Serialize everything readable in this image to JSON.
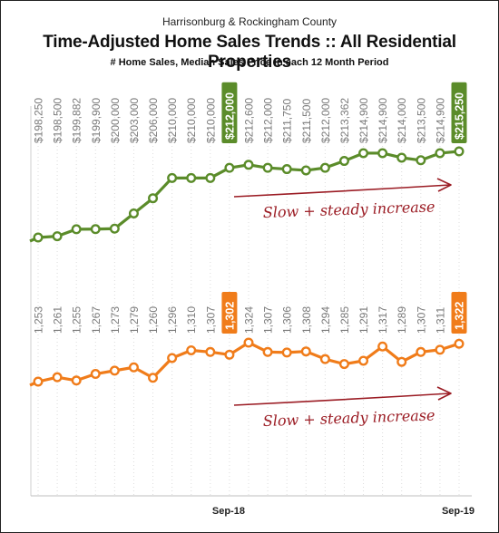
{
  "header": {
    "supertitle": "Harrisonburg & Rockingham County",
    "title": "Time-Adjusted Home Sales Trends  ::  All Residential Properties",
    "subtitle": "# Home Sales, Median Sales Price in each 12 Month Period"
  },
  "colors": {
    "price": "#5b8c2a",
    "sales": "#f07c1a",
    "annotation": "#9b1c24",
    "grid": "#dcdcdc"
  },
  "chart_data": [
    {
      "type": "line",
      "name": "Median Sales Price",
      "x_ticks": [
        "Sep-18",
        "Sep-19"
      ],
      "values": [
        198250,
        198500,
        199882,
        199900,
        200000,
        203000,
        206000,
        210000,
        210000,
        210000,
        212000,
        212600,
        212000,
        211750,
        211500,
        212000,
        213362,
        214900,
        214900,
        214000,
        213500,
        214900,
        215250
      ],
      "labels": [
        "$198,250",
        "$198,500",
        "$199,882",
        "$199,900",
        "$200,000",
        "$203,000",
        "$206,000",
        "$210,000",
        "$210,000",
        "$210,000",
        "$212,000",
        "$212,600",
        "$212,000",
        "$211,750",
        "$211,500",
        "$212,000",
        "$213,362",
        "$214,900",
        "$214,900",
        "$214,000",
        "$213,500",
        "$214,900",
        "$215,250"
      ],
      "highlighted_indices": [
        10,
        22
      ],
      "annotation": "Slow + steady increase"
    },
    {
      "type": "line",
      "name": "# Home Sales",
      "x_ticks": [
        "Sep-18",
        "Sep-19"
      ],
      "values": [
        1253,
        1261,
        1255,
        1267,
        1273,
        1279,
        1260,
        1296,
        1310,
        1307,
        1302,
        1324,
        1307,
        1306,
        1308,
        1294,
        1285,
        1291,
        1317,
        1289,
        1307,
        1311,
        1322
      ],
      "labels": [
        "1,253",
        "1,261",
        "1,255",
        "1,267",
        "1,273",
        "1,279",
        "1,260",
        "1,296",
        "1,310",
        "1,307",
        "1,302",
        "1,324",
        "1,307",
        "1,306",
        "1,308",
        "1,294",
        "1,285",
        "1,291",
        "1,317",
        "1,289",
        "1,307",
        "1,311",
        "1,322"
      ],
      "highlighted_indices": [
        10,
        22
      ],
      "annotation": "Slow + steady increase"
    }
  ]
}
